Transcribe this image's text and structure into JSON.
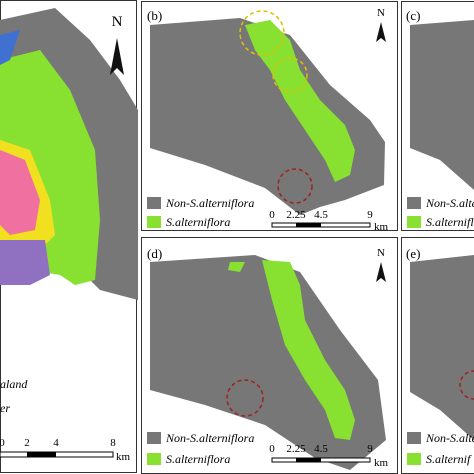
{
  "panels": {
    "a": {
      "north": "N",
      "legend": [
        "aland",
        "er"
      ],
      "scale": {
        "ticks": [
          "0",
          "2",
          "4",
          "8"
        ],
        "unit": "km"
      }
    },
    "b": {
      "label": "(b)",
      "north": "N",
      "legend": [
        "Non-S.alterniflora",
        "S.alterniflora"
      ],
      "scale": {
        "ticks": [
          "0",
          "2.25",
          "4.5",
          "9"
        ],
        "unit": "km"
      }
    },
    "c": {
      "label": "(c)",
      "legend": [
        "Non-S.alte",
        "S.alterniflor"
      ]
    },
    "d": {
      "label": "(d)",
      "north": "N",
      "legend": [
        "Non-S.alterniflora",
        "S.alterniflora"
      ],
      "scale": {
        "ticks": [
          "0",
          "2.25",
          "4.5",
          "9"
        ],
        "unit": "km"
      }
    },
    "e": {
      "label": "(e)",
      "legend": [
        "Non-S.alte",
        "S.alternif"
      ]
    }
  }
}
